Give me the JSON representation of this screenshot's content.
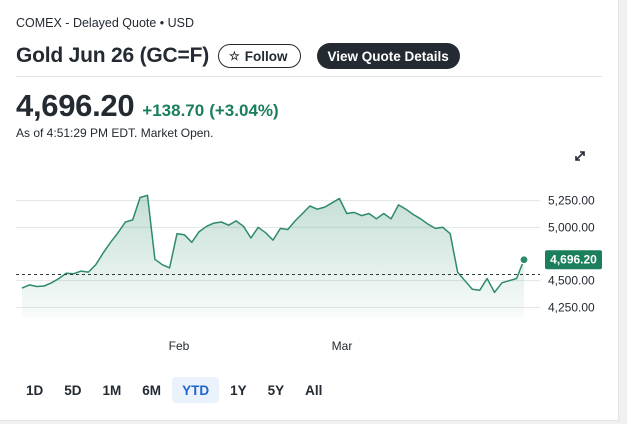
{
  "header": {
    "exchange": "COMEX - Delayed Quote • USD",
    "title": "Gold Jun 26 (GC=F)",
    "follow_label": "Follow",
    "quote_details_label": "View Quote Details"
  },
  "quote": {
    "price": "4,696.20",
    "change": "+138.70",
    "change_pct": "(+3.04%)",
    "as_of": "As of 4:51:29 PM EDT. Market Open."
  },
  "icons": {
    "follow": "star-icon",
    "expand": "expand-icon"
  },
  "colors": {
    "up": "#1a7f5a",
    "line": "#2e8b6a",
    "selected_range": "#1f65cf",
    "dark": "#232a31"
  },
  "range_tabs": [
    "1D",
    "5D",
    "1M",
    "6M",
    "YTD",
    "1Y",
    "5Y",
    "All"
  ],
  "selected_range": "YTD",
  "chart_data": {
    "type": "area",
    "x_tick_labels": [
      "Feb",
      "Mar"
    ],
    "y_ticks": [
      4250,
      4500,
      5000,
      5250
    ],
    "y_tick_labels": [
      "4,250.00",
      "4,500.00",
      "5,000.00",
      "5,250.00"
    ],
    "ylim": [
      4150,
      5350
    ],
    "previous_close": 4557.5,
    "last_label": "4,696.20",
    "last_value": 4696.2,
    "grid": true,
    "series": [
      {
        "values": [
          4430,
          4460,
          4445,
          4450,
          4480,
          4520,
          4570,
          4565,
          4590,
          4580,
          4650,
          4760,
          4860,
          4950,
          5050,
          5070,
          5280,
          5300,
          4700,
          4650,
          4620,
          4940,
          4930,
          4860,
          4960,
          5010,
          5040,
          5050,
          5020,
          5060,
          5010,
          4900,
          5000,
          4950,
          4880,
          4990,
          4980,
          5060,
          5130,
          5200,
          5170,
          5190,
          5230,
          5270,
          5130,
          5140,
          5110,
          5130,
          5080,
          5130,
          5080,
          5210,
          5170,
          5120,
          5080,
          5030,
          4990,
          5000,
          4940,
          4580,
          4500,
          4420,
          4410,
          4520,
          4390,
          4480,
          4500,
          4520,
          4696.2
        ]
      }
    ]
  }
}
